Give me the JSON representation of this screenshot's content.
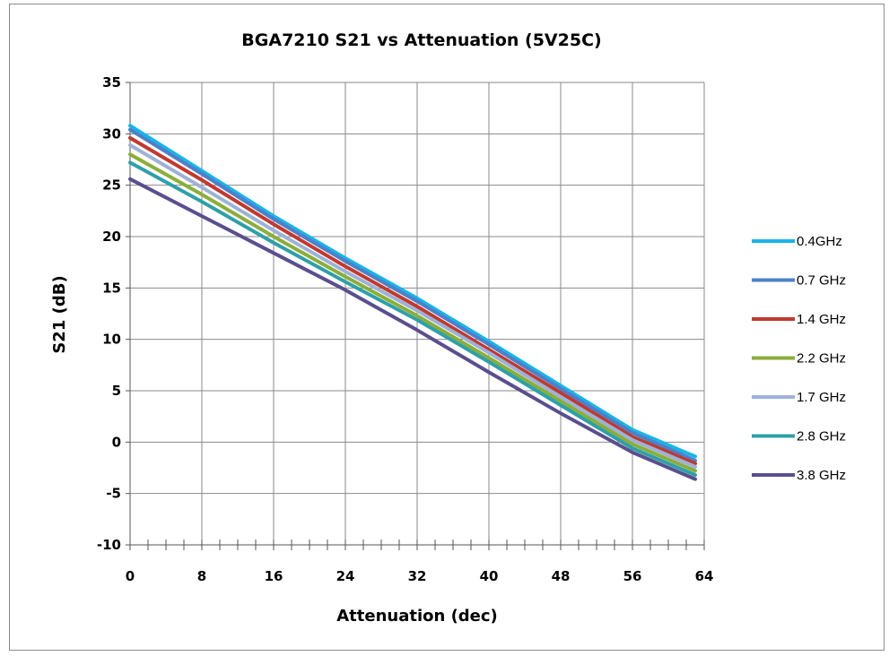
{
  "chart_data": {
    "type": "line",
    "title": "BGA7210 S21 vs Attenuation (5V25C)",
    "xlabel": "Attenuation (dec)",
    "ylabel": "S21 (dB)",
    "xlim": [
      0,
      64
    ],
    "ylim": [
      -10,
      35
    ],
    "xticks": [
      0,
      8,
      16,
      24,
      32,
      40,
      48,
      56,
      64
    ],
    "yticks": [
      -10,
      -5,
      0,
      5,
      10,
      15,
      20,
      25,
      30,
      35
    ],
    "x_minor_step": 2,
    "grid": true,
    "legend_position": "right",
    "series": [
      {
        "name": "0.4GHz",
        "color": "#19b4e8",
        "x": [
          0,
          8,
          16,
          24,
          32,
          40,
          48,
          56,
          63
        ],
        "values": [
          30.8,
          26.4,
          22.0,
          17.9,
          14.0,
          9.8,
          5.5,
          1.2,
          -1.4
        ]
      },
      {
        "name": "0.7 GHz",
        "color": "#4f7fc8",
        "x": [
          0,
          8,
          16,
          24,
          32,
          40,
          48,
          56,
          63
        ],
        "values": [
          30.4,
          26.1,
          21.7,
          17.6,
          13.7,
          9.5,
          5.2,
          0.9,
          -1.8
        ]
      },
      {
        "name": "1.4 GHz",
        "color": "#c0392f",
        "x": [
          0,
          8,
          16,
          24,
          32,
          40,
          48,
          56,
          63
        ],
        "values": [
          29.6,
          25.5,
          21.2,
          17.1,
          13.2,
          9.0,
          4.8,
          0.5,
          -2.1
        ]
      },
      {
        "name": "2.2 GHz",
        "color": "#8aae3a",
        "x": [
          0,
          8,
          16,
          24,
          32,
          40,
          48,
          56,
          63
        ],
        "values": [
          28.0,
          24.1,
          20.0,
          16.1,
          12.3,
          8.2,
          4.0,
          -0.2,
          -2.8
        ]
      },
      {
        "name": "1.7 GHz",
        "color": "#9eb2d6",
        "x": [
          0,
          8,
          16,
          24,
          32,
          40,
          48,
          56,
          63
        ],
        "values": [
          28.9,
          24.8,
          20.6,
          16.6,
          12.8,
          8.7,
          4.4,
          0.2,
          -2.4
        ]
      },
      {
        "name": "2.8 GHz",
        "color": "#2f9fa8",
        "x": [
          0,
          8,
          16,
          24,
          32,
          40,
          48,
          56,
          63
        ],
        "values": [
          27.2,
          23.4,
          19.4,
          15.6,
          11.9,
          7.8,
          3.6,
          -0.6,
          -3.2
        ]
      },
      {
        "name": "3.8 GHz",
        "color": "#5b4e8e",
        "x": [
          0,
          8,
          16,
          24,
          32,
          40,
          48,
          56,
          63
        ],
        "values": [
          25.6,
          22.0,
          18.4,
          14.8,
          10.9,
          6.8,
          2.8,
          -1.0,
          -3.6
        ]
      }
    ]
  }
}
